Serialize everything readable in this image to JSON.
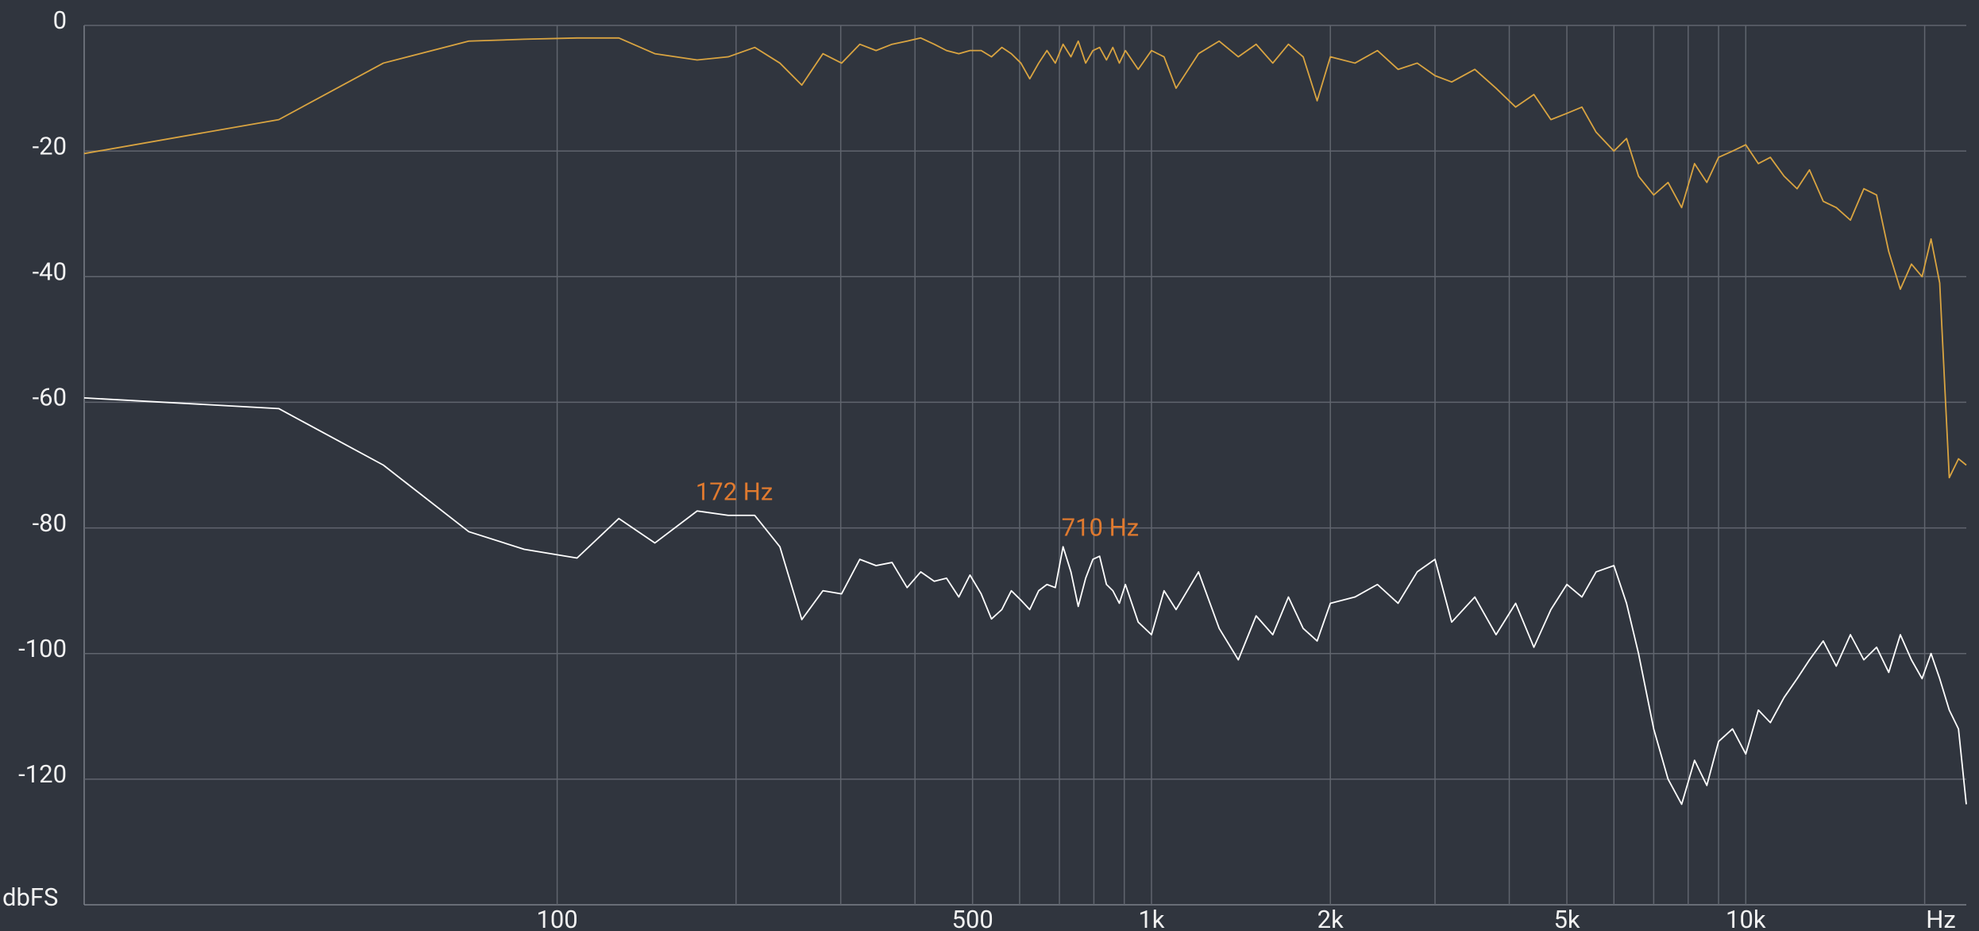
{
  "chart_data": {
    "type": "line",
    "xlabel": "Hz",
    "ylabel": "dbFS",
    "x_scale": "log",
    "grid": true,
    "xlim": [
      16,
      23500
    ],
    "ylim": [
      -140,
      0
    ],
    "yticks": [
      0,
      -20,
      -40,
      -60,
      -80,
      -100,
      -120
    ],
    "xticks": [
      100,
      500,
      {
        "value": 1000,
        "label": "1k"
      },
      {
        "value": 2000,
        "label": "2k"
      },
      {
        "value": 5000,
        "label": "5k"
      },
      {
        "value": 10000,
        "label": "10k"
      }
    ],
    "x_minor_ticks": [
      200,
      300,
      400,
      600,
      700,
      800,
      900,
      3000,
      4000,
      6000,
      7000,
      8000,
      9000,
      20000
    ],
    "x": [
      16,
      34,
      51,
      71,
      88,
      108,
      127,
      146,
      172,
      194,
      215,
      237,
      258,
      280,
      301,
      323,
      344,
      366,
      388,
      409,
      431,
      452,
      474,
      495,
      517,
      538,
      560,
      581,
      603,
      624,
      646,
      667,
      689,
      710,
      732,
      753,
      775,
      797,
      818,
      840,
      861,
      883,
      904,
      950,
      1000,
      1050,
      1100,
      1200,
      1300,
      1400,
      1500,
      1600,
      1700,
      1800,
      1900,
      2000,
      2200,
      2400,
      2600,
      2800,
      3000,
      3200,
      3500,
      3800,
      4100,
      4400,
      4700,
      5000,
      5300,
      5600,
      6000,
      6300,
      6600,
      7000,
      7400,
      7800,
      8200,
      8600,
      9000,
      9500,
      10000,
      10500,
      11000,
      11600,
      12200,
      12800,
      13500,
      14200,
      15000,
      15800,
      16600,
      17400,
      18200,
      19000,
      19800,
      20500,
      21200,
      22000,
      22800,
      23500
    ],
    "series": [
      {
        "color": "#d9a441",
        "values": [
          -20.4,
          -15,
          -6,
          -2.5,
          -2.2,
          -2,
          -2,
          -4.5,
          -5.5,
          -5,
          -3.5,
          -6,
          -9.5,
          -4.5,
          -6,
          -3,
          -4,
          -3,
          -2.5,
          -2,
          -3,
          -4,
          -4.5,
          -4,
          -4,
          -5,
          -3.5,
          -4.5,
          -6,
          -8.5,
          -6,
          -4,
          -6,
          -3,
          -5,
          -2.5,
          -6,
          -4,
          -3.5,
          -5.5,
          -3.5,
          -6,
          -4,
          -7,
          -4,
          -5,
          -10,
          -4.5,
          -2.5,
          -5,
          -3,
          -6,
          -3,
          -5,
          -12,
          -5,
          -6,
          -4,
          -7,
          -6,
          -8,
          -9,
          -7,
          -10,
          -13,
          -11,
          -15,
          -14,
          -13,
          -17,
          -20,
          -18,
          -24,
          -27,
          -25,
          -29,
          -22,
          -25,
          -21,
          -20,
          -19,
          -22,
          -21,
          -24,
          -26,
          -23,
          -28,
          -29,
          -31,
          -26,
          -27,
          -36,
          -42,
          -38,
          -40,
          -34,
          -41,
          -72,
          -69,
          -70
        ]
      },
      {
        "color": "#ffffff",
        "values": [
          -59.3,
          -61,
          -70,
          -80.6,
          -83.4,
          -84.8,
          -78.5,
          -82.4,
          -77.3,
          -78,
          -78,
          -83,
          -94.6,
          -90,
          -90.5,
          -85,
          -86,
          -85.5,
          -89.5,
          -87,
          -88.5,
          -88,
          -91,
          -87.5,
          -90.5,
          -94.5,
          -93,
          -90,
          -91.5,
          -93,
          -90,
          -89,
          -89.5,
          -83,
          -87,
          -92.5,
          -88,
          -85,
          -84.5,
          -89,
          -90,
          -92,
          -89,
          -95,
          -97,
          -90,
          -93,
          -87,
          -96,
          -101,
          -94,
          -97,
          -91,
          -96,
          -98,
          -92,
          -91,
          -89,
          -92,
          -87,
          -85,
          -95,
          -91,
          -97,
          -92,
          -99,
          -93,
          -89,
          -91,
          -87,
          -86,
          -92,
          -100,
          -112,
          -120,
          -124,
          -117,
          -121,
          -114,
          -112,
          -116,
          -109,
          -111,
          -107,
          -104,
          -101,
          -98,
          -102,
          -97,
          -101,
          -99,
          -103,
          -97,
          -101,
          -104,
          -100,
          -104,
          -109,
          -112,
          -124
        ]
      }
    ],
    "annotations": [
      {
        "text": "172 Hz",
        "x": 172,
        "y": -77.3,
        "color": "#e07a2f"
      },
      {
        "text": "710 Hz",
        "x": 710,
        "y": -83,
        "color": "#e07a2f"
      }
    ]
  }
}
